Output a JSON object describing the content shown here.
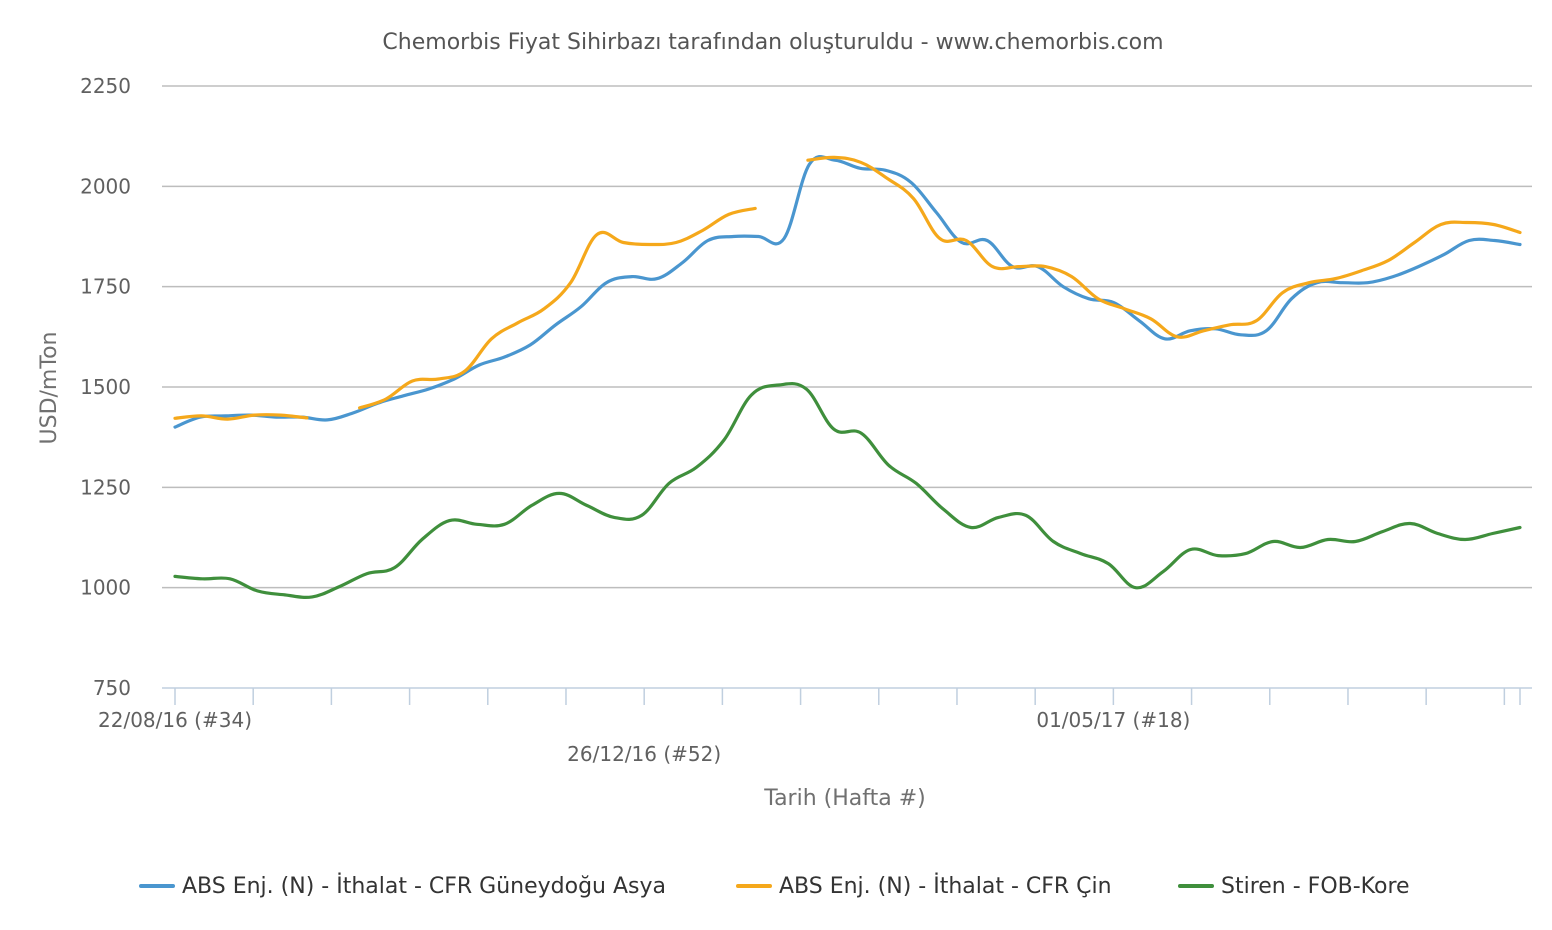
{
  "chart_data": {
    "type": "line",
    "title": "Chemorbis Fiyat Sihirbazı tarafından oluşturuldu - www.chemorbis.com",
    "xlabel": "Tarih (Hafta #)",
    "ylabel": "USD/mTon",
    "ylim": [
      750,
      2250
    ],
    "yticks": [
      750,
      1000,
      1250,
      1500,
      1750,
      2000,
      2250
    ],
    "grid": true,
    "legend_position": "bottom",
    "x_week_range": [
      0,
      43
    ],
    "x_tick_weeks": [
      0,
      2.5,
      5,
      7.5,
      10,
      12.5,
      15,
      17.5,
      20,
      22.5,
      25,
      27.5,
      30,
      32.5,
      35,
      37.5,
      40,
      42.5,
      43
    ],
    "x_labels": [
      {
        "week": 0,
        "text": "22/08/16 (#34)",
        "row": 1
      },
      {
        "week": 15,
        "text": "26/12/16 (#52)",
        "row": 2
      },
      {
        "week": 30,
        "text": "01/05/17 (#18)",
        "row": 1
      }
    ],
    "series": [
      {
        "name": "ABS Enj. (N) - İthalat - CFR Güneydoğu Asya",
        "color": "#4a96cf",
        "segments": [
          [
            [
              0,
              1400
            ],
            [
              1,
              1425
            ],
            [
              2,
              1428
            ],
            [
              3,
              1430
            ],
            [
              4,
              1425
            ],
            [
              5,
              1425
            ],
            [
              6,
              1418
            ],
            [
              7,
              1435
            ],
            [
              8,
              1460
            ],
            [
              9,
              1478
            ],
            [
              10,
              1495
            ],
            [
              11,
              1520
            ],
            [
              12,
              1555
            ],
            [
              13,
              1575
            ],
            [
              14,
              1605
            ],
            [
              15,
              1655
            ],
            [
              16,
              1700
            ],
            [
              17,
              1760
            ],
            [
              18,
              1775
            ],
            [
              19,
              1770
            ],
            [
              20,
              1810
            ],
            [
              21,
              1865
            ],
            [
              22,
              1875
            ],
            [
              23,
              1875
            ],
            [
              24,
              1870
            ],
            [
              25,
              2055
            ],
            [
              26,
              2065
            ],
            [
              27,
              2045
            ],
            [
              28,
              2040
            ],
            [
              29,
              2010
            ],
            [
              30,
              1935
            ],
            [
              31,
              1860
            ],
            [
              32,
              1865
            ],
            [
              33,
              1800
            ],
            [
              34,
              1800
            ],
            [
              35,
              1750
            ],
            [
              36,
              1720
            ],
            [
              37,
              1710
            ],
            [
              38,
              1665
            ],
            [
              39,
              1620
            ],
            [
              40,
              1640
            ],
            [
              41,
              1645
            ],
            [
              42,
              1630
            ],
            [
              43,
              1640
            ],
            [
              44,
              1720
            ],
            [
              45,
              1760
            ],
            [
              46,
              1760
            ],
            [
              47,
              1760
            ],
            [
              48,
              1775
            ],
            [
              49,
              1800
            ],
            [
              50,
              1830
            ],
            [
              51,
              1865
            ],
            [
              52,
              1865
            ],
            [
              53,
              1855
            ]
          ]
        ]
      },
      {
        "name": "ABS Enj. (N) - İthalat - CFR Çin",
        "color": "#f5a81b",
        "segments": [
          [
            [
              0,
              1422
            ],
            [
              1,
              1428
            ],
            [
              2,
              1420
            ],
            [
              3,
              1430
            ],
            [
              4,
              1430
            ],
            [
              5,
              1423
            ]
          ],
          [
            [
              7,
              1448
            ],
            [
              8,
              1470
            ],
            [
              9,
              1515
            ],
            [
              10,
              1520
            ],
            [
              11,
              1540
            ],
            [
              12,
              1620
            ],
            [
              13,
              1660
            ],
            [
              14,
              1695
            ],
            [
              15,
              1760
            ],
            [
              16,
              1880
            ],
            [
              17,
              1860
            ],
            [
              18,
              1855
            ],
            [
              19,
              1860
            ],
            [
              20,
              1890
            ],
            [
              21,
              1930
            ],
            [
              22,
              1945
            ]
          ],
          [
            [
              24,
              2065
            ],
            [
              25,
              2072
            ],
            [
              26,
              2060
            ],
            [
              27,
              2020
            ],
            [
              28,
              1970
            ],
            [
              29,
              1870
            ],
            [
              30,
              1865
            ],
            [
              31,
              1800
            ],
            [
              32,
              1800
            ],
            [
              33,
              1800
            ],
            [
              34,
              1775
            ],
            [
              35,
              1720
            ],
            [
              36,
              1695
            ],
            [
              37,
              1670
            ],
            [
              38,
              1625
            ],
            [
              39,
              1640
            ],
            [
              40,
              1655
            ],
            [
              41,
              1665
            ],
            [
              42,
              1735
            ],
            [
              43,
              1760
            ],
            [
              44,
              1770
            ],
            [
              45,
              1790
            ],
            [
              46,
              1815
            ],
            [
              47,
              1860
            ],
            [
              48,
              1905
            ],
            [
              49,
              1910
            ],
            [
              50,
              1905
            ],
            [
              51,
              1885
            ]
          ]
        ]
      },
      {
        "name": "Stiren - FOB-Kore",
        "color": "#3f8f3c",
        "segments": [
          [
            [
              0,
              1028
            ],
            [
              1,
              1022
            ],
            [
              2,
              1022
            ],
            [
              3,
              992
            ],
            [
              4,
              982
            ],
            [
              5,
              977
            ],
            [
              6,
              1003
            ],
            [
              7,
              1035
            ],
            [
              8,
              1050
            ],
            [
              9,
              1120
            ],
            [
              10,
              1167
            ],
            [
              11,
              1158
            ],
            [
              12,
              1158
            ],
            [
              13,
              1205
            ],
            [
              14,
              1235
            ],
            [
              15,
              1205
            ],
            [
              16,
              1175
            ],
            [
              17,
              1180
            ],
            [
              18,
              1260
            ],
            [
              19,
              1300
            ],
            [
              20,
              1368
            ],
            [
              21,
              1480
            ],
            [
              22,
              1505
            ],
            [
              23,
              1495
            ],
            [
              24,
              1395
            ],
            [
              25,
              1385
            ],
            [
              26,
              1305
            ],
            [
              27,
              1260
            ],
            [
              28,
              1195
            ],
            [
              29,
              1150
            ],
            [
              30,
              1175
            ],
            [
              31,
              1180
            ],
            [
              32,
              1115
            ],
            [
              33,
              1085
            ],
            [
              34,
              1060
            ],
            [
              35,
              1000
            ],
            [
              36,
              1040
            ],
            [
              37,
              1095
            ],
            [
              38,
              1080
            ],
            [
              39,
              1085
            ],
            [
              40,
              1115
            ],
            [
              41,
              1100
            ],
            [
              42,
              1120
            ],
            [
              43,
              1115
            ],
            [
              44,
              1140
            ],
            [
              45,
              1160
            ],
            [
              46,
              1135
            ],
            [
              47,
              1120
            ],
            [
              48,
              1135
            ],
            [
              49,
              1150
            ]
          ]
        ]
      }
    ]
  }
}
